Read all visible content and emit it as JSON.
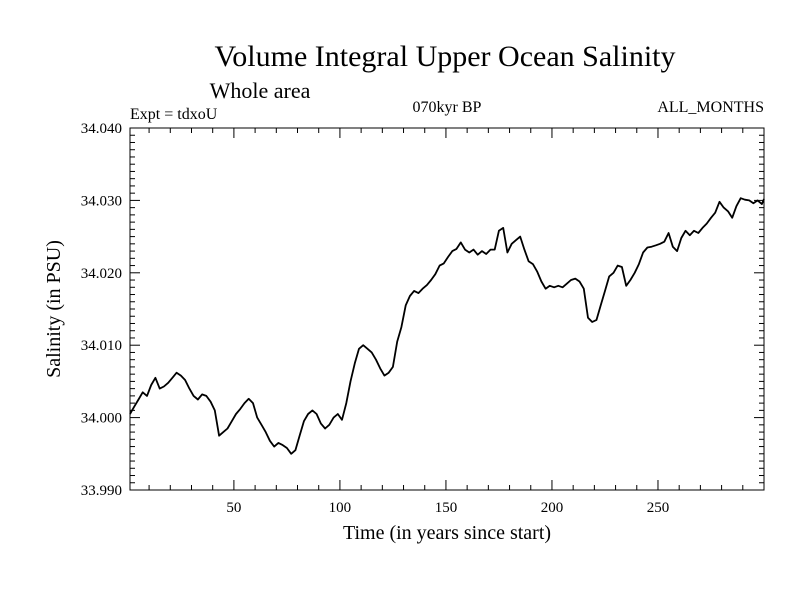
{
  "chart_data": {
    "type": "line",
    "title": "Volume Integral Upper Ocean Salinity",
    "subtitle": "Whole area",
    "annotations": {
      "left": "Expt = tdxoU",
      "center": "070kyr BP",
      "right": "ALL_MONTHS"
    },
    "xlabel": "Time (in years since start)",
    "ylabel": "Salinity (in PSU)",
    "xlim": [
      1,
      300
    ],
    "ylim": [
      33.99,
      34.04
    ],
    "xticks": [
      50,
      100,
      150,
      200,
      250
    ],
    "xtick_labels": [
      "50",
      "100",
      "150",
      "200",
      "250"
    ],
    "yticks": [
      33.99,
      34.0,
      34.01,
      34.02,
      34.03,
      34.04
    ],
    "ytick_labels": [
      "33.990",
      "34.000",
      "34.010",
      "34.020",
      "34.030",
      "34.040"
    ],
    "grid": false,
    "series": [
      {
        "color": "#000000",
        "x": [
          1,
          3,
          5,
          7,
          9,
          11,
          13,
          15,
          17,
          19,
          21,
          23,
          25,
          27,
          29,
          31,
          33,
          35,
          37,
          39,
          41,
          43,
          45,
          47,
          49,
          51,
          53,
          55,
          57,
          59,
          61,
          63,
          65,
          67,
          69,
          71,
          73,
          75,
          77,
          79,
          81,
          83,
          85,
          87,
          89,
          91,
          93,
          95,
          97,
          99,
          101,
          103,
          105,
          107,
          109,
          111,
          113,
          115,
          117,
          119,
          121,
          123,
          125,
          127,
          129,
          131,
          133,
          135,
          137,
          139,
          141,
          143,
          145,
          147,
          149,
          151,
          153,
          155,
          157,
          159,
          161,
          163,
          165,
          167,
          169,
          171,
          173,
          175,
          177,
          179,
          181,
          183,
          185,
          187,
          189,
          191,
          193,
          195,
          197,
          199,
          201,
          203,
          205,
          207,
          209,
          211,
          213,
          215,
          217,
          219,
          221,
          223,
          225,
          227,
          229,
          231,
          233,
          235,
          237,
          239,
          241,
          243,
          245,
          247,
          249,
          251,
          253,
          255,
          257,
          259,
          261,
          263,
          265,
          267,
          269,
          271,
          273,
          275,
          277,
          279,
          281,
          283,
          285,
          287,
          289,
          291,
          293,
          295,
          297,
          299,
          300
        ],
        "y": [
          34.0005,
          34.0015,
          34.0025,
          34.0035,
          34.003,
          34.0045,
          34.0055,
          34.004,
          34.0043,
          34.0048,
          34.0055,
          34.0062,
          34.0058,
          34.0052,
          34.004,
          34.003,
          34.0025,
          34.0032,
          34.003,
          34.0022,
          34.001,
          33.9975,
          33.998,
          33.9985,
          33.9995,
          34.0005,
          34.0012,
          34.002,
          34.0026,
          34.002,
          34.0,
          33.999,
          33.998,
          33.9968,
          33.996,
          33.9965,
          33.9962,
          33.9958,
          33.995,
          33.9955,
          33.9975,
          33.9995,
          34.0005,
          34.001,
          34.0005,
          33.9992,
          33.9985,
          33.999,
          34.0,
          34.0005,
          33.9997,
          34.002,
          34.005,
          34.0075,
          34.0095,
          34.01,
          34.0095,
          34.009,
          34.008,
          34.0068,
          34.0058,
          34.0062,
          34.007,
          34.0105,
          34.0125,
          34.0155,
          34.0168,
          34.0175,
          34.0172,
          34.0178,
          34.0183,
          34.019,
          34.0198,
          34.021,
          34.0213,
          34.0222,
          34.023,
          34.0233,
          34.0242,
          34.0232,
          34.0228,
          34.0232,
          34.0225,
          34.023,
          34.0226,
          34.0232,
          34.0232,
          34.0258,
          34.0262,
          34.0228,
          34.024,
          34.0245,
          34.025,
          34.0232,
          34.0216,
          34.0212,
          34.0202,
          34.0188,
          34.0178,
          34.0182,
          34.018,
          34.0182,
          34.018,
          34.0185,
          34.019,
          34.0192,
          34.0188,
          34.0178,
          34.0138,
          34.0132,
          34.0135,
          34.0155,
          34.0175,
          34.0195,
          34.02,
          34.021,
          34.0208,
          34.0182,
          34.019,
          34.02,
          34.0212,
          34.0228,
          34.0235,
          34.0236,
          34.0238,
          34.024,
          34.0243,
          34.0255,
          34.0236,
          34.023,
          34.0248,
          34.0258,
          34.0252,
          34.0258,
          34.0255,
          34.0262,
          34.0268,
          34.0276,
          34.0283,
          34.0298,
          34.029,
          34.0285,
          34.0276,
          34.0292,
          34.0303,
          34.0301,
          34.03,
          34.0296,
          34.03,
          34.0295,
          34.0302
        ]
      }
    ]
  }
}
